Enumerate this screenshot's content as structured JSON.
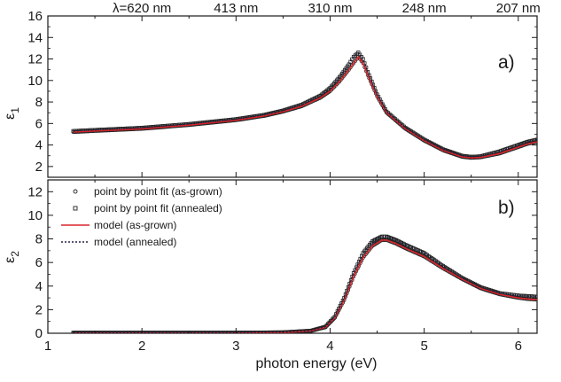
{
  "chart_data": {
    "type": "line",
    "x_axis": {
      "label": "photon energy (eV)",
      "range": [
        1.0,
        6.2
      ],
      "ticks": [
        1,
        2,
        3,
        4,
        5,
        6
      ]
    },
    "top_axis": {
      "ticks": [
        {
          "x": 2.0,
          "label": "λ=620 nm"
        },
        {
          "x": 3.0,
          "label": "413 nm"
        },
        {
          "x": 4.0,
          "label": "310 nm"
        },
        {
          "x": 5.0,
          "label": "248 nm"
        },
        {
          "x": 6.0,
          "label": "207 nm"
        }
      ]
    },
    "panels": [
      {
        "tag": "a)",
        "ylabel": "ε",
        "ylabel_sub": "1",
        "ylim": [
          1,
          16
        ],
        "yticks": [
          2,
          4,
          6,
          8,
          10,
          12,
          14,
          16
        ],
        "series": [
          {
            "name": "point by point fit (as-grown)",
            "style": "open-circle",
            "color": "#222222",
            "x": [
              1.27,
              1.5,
              2.0,
              2.5,
              3.0,
              3.3,
              3.5,
              3.7,
              3.9,
              4.0,
              4.1,
              4.2,
              4.25,
              4.3,
              4.35,
              4.4,
              4.5,
              4.6,
              4.8,
              5.0,
              5.2,
              5.4,
              5.5,
              5.6,
              5.8,
              6.0,
              6.1,
              6.2
            ],
            "y": [
              5.2,
              5.3,
              5.5,
              5.85,
              6.3,
              6.7,
              7.1,
              7.6,
              8.4,
              9.0,
              9.9,
              11.0,
              11.6,
              12.2,
              11.6,
              10.5,
              8.5,
              7.0,
              5.5,
              4.4,
              3.5,
              2.9,
              2.8,
              2.85,
              3.2,
              3.8,
              4.1,
              4.3
            ]
          },
          {
            "name": "point by point fit (annealed)",
            "style": "open-square",
            "color": "#222222",
            "x": [
              1.27,
              1.5,
              2.0,
              2.5,
              3.0,
              3.3,
              3.5,
              3.7,
              3.9,
              4.0,
              4.1,
              4.2,
              4.25,
              4.3,
              4.35,
              4.4,
              4.5,
              4.6,
              4.8,
              5.0,
              5.2,
              5.4,
              5.5,
              5.6,
              5.8,
              6.0,
              6.1,
              6.2
            ],
            "y": [
              5.3,
              5.4,
              5.6,
              5.95,
              6.4,
              6.8,
              7.2,
              7.75,
              8.6,
              9.3,
              10.3,
              11.5,
              12.2,
              12.6,
              12.0,
              10.8,
              8.7,
              7.1,
              5.6,
              4.5,
              3.6,
              3.0,
              2.9,
              2.95,
              3.4,
              4.0,
              4.3,
              4.5
            ]
          },
          {
            "name": "model (as-grown)",
            "style": "solid",
            "color": "#d8232a",
            "x": [
              1.27,
              1.5,
              2.0,
              2.5,
              3.0,
              3.3,
              3.5,
              3.7,
              3.9,
              4.0,
              4.1,
              4.2,
              4.25,
              4.3,
              4.35,
              4.4,
              4.5,
              4.6,
              4.8,
              5.0,
              5.2,
              5.4,
              5.5,
              5.6,
              5.8,
              6.0,
              6.1,
              6.2
            ],
            "y": [
              5.2,
              5.3,
              5.5,
              5.85,
              6.3,
              6.7,
              7.1,
              7.6,
              8.4,
              9.0,
              9.9,
              11.0,
              11.6,
              12.2,
              11.6,
              10.5,
              8.5,
              7.0,
              5.5,
              4.4,
              3.5,
              2.9,
              2.8,
              2.85,
              3.2,
              3.8,
              4.1,
              4.3
            ]
          },
          {
            "name": "model (annealed)",
            "style": "dotted",
            "color": "#222244",
            "x": [
              1.27,
              1.5,
              2.0,
              2.5,
              3.0,
              3.3,
              3.5,
              3.7,
              3.9,
              4.0,
              4.1,
              4.2,
              4.25,
              4.3,
              4.35,
              4.4,
              4.5,
              4.6,
              4.8,
              5.0,
              5.2,
              5.4,
              5.5,
              5.6,
              5.8,
              6.0,
              6.1,
              6.2
            ],
            "y": [
              5.3,
              5.4,
              5.6,
              5.95,
              6.4,
              6.8,
              7.2,
              7.75,
              8.6,
              9.3,
              10.3,
              11.5,
              12.2,
              12.6,
              12.0,
              10.8,
              8.7,
              7.1,
              5.6,
              4.5,
              3.6,
              3.0,
              2.9,
              2.95,
              3.4,
              4.0,
              4.3,
              4.5
            ]
          }
        ]
      },
      {
        "tag": "b)",
        "ylabel": "ε",
        "ylabel_sub": "2",
        "ylim": [
          0,
          13
        ],
        "yticks": [
          0,
          2,
          4,
          6,
          8,
          10,
          12
        ],
        "series": [
          {
            "name": "point by point fit (as-grown)",
            "style": "open-circle",
            "color": "#222222",
            "x": [
              1.27,
              2.0,
              3.0,
              3.5,
              3.8,
              3.95,
              4.05,
              4.15,
              4.25,
              4.35,
              4.45,
              4.55,
              4.6,
              4.7,
              4.8,
              5.0,
              5.2,
              5.4,
              5.6,
              5.8,
              6.0,
              6.1,
              6.2
            ],
            "y": [
              0.0,
              0.0,
              0.0,
              0.05,
              0.2,
              0.5,
              1.3,
              2.8,
              4.8,
              6.4,
              7.4,
              7.9,
              7.9,
              7.6,
              7.2,
              6.5,
              5.5,
              4.6,
              3.8,
              3.3,
              3.0,
              2.9,
              2.85
            ]
          },
          {
            "name": "point by point fit (annealed)",
            "style": "open-square",
            "color": "#222222",
            "x": [
              1.27,
              2.0,
              3.0,
              3.5,
              3.8,
              3.95,
              4.05,
              4.15,
              4.25,
              4.35,
              4.45,
              4.55,
              4.6,
              4.7,
              4.8,
              5.0,
              5.2,
              5.4,
              5.6,
              5.8,
              6.0,
              6.1,
              6.2
            ],
            "y": [
              0.05,
              0.05,
              0.05,
              0.08,
              0.22,
              0.55,
              1.4,
              3.0,
              5.1,
              6.8,
              7.8,
              8.2,
              8.2,
              7.9,
              7.5,
              6.8,
              5.7,
              4.7,
              3.9,
              3.4,
              3.2,
              3.15,
              3.1
            ]
          },
          {
            "name": "model (as-grown)",
            "style": "solid",
            "color": "#d8232a",
            "x": [
              1.27,
              2.0,
              3.0,
              3.5,
              3.8,
              3.95,
              4.05,
              4.15,
              4.25,
              4.35,
              4.45,
              4.55,
              4.6,
              4.7,
              4.8,
              5.0,
              5.2,
              5.4,
              5.6,
              5.8,
              6.0,
              6.1,
              6.2
            ],
            "y": [
              0.0,
              0.0,
              0.0,
              0.05,
              0.2,
              0.5,
              1.3,
              2.8,
              4.8,
              6.4,
              7.4,
              7.9,
              7.9,
              7.6,
              7.2,
              6.5,
              5.5,
              4.6,
              3.8,
              3.3,
              3.0,
              2.9,
              2.85
            ]
          },
          {
            "name": "model (annealed)",
            "style": "dotted",
            "color": "#222244",
            "x": [
              1.27,
              2.0,
              3.0,
              3.5,
              3.8,
              3.95,
              4.05,
              4.15,
              4.25,
              4.35,
              4.45,
              4.55,
              4.6,
              4.7,
              4.8,
              5.0,
              5.2,
              5.4,
              5.6,
              5.8,
              6.0,
              6.1,
              6.2
            ],
            "y": [
              0.05,
              0.05,
              0.05,
              0.08,
              0.22,
              0.55,
              1.4,
              3.0,
              5.1,
              6.8,
              7.8,
              8.2,
              8.2,
              7.9,
              7.5,
              6.8,
              5.7,
              4.7,
              3.9,
              3.4,
              3.2,
              3.15,
              3.1
            ]
          }
        ]
      }
    ],
    "legend": {
      "panel": "b)",
      "placement": "top-left",
      "entries": [
        {
          "label": "point by point fit (as-grown)",
          "style": "open-circle"
        },
        {
          "label": "point by point fit (annealed)",
          "style": "open-square"
        },
        {
          "label": "model (as-grown)",
          "style": "solid",
          "color": "#d8232a"
        },
        {
          "label": "model (annealed)",
          "style": "dotted",
          "color": "#222244"
        }
      ]
    }
  }
}
